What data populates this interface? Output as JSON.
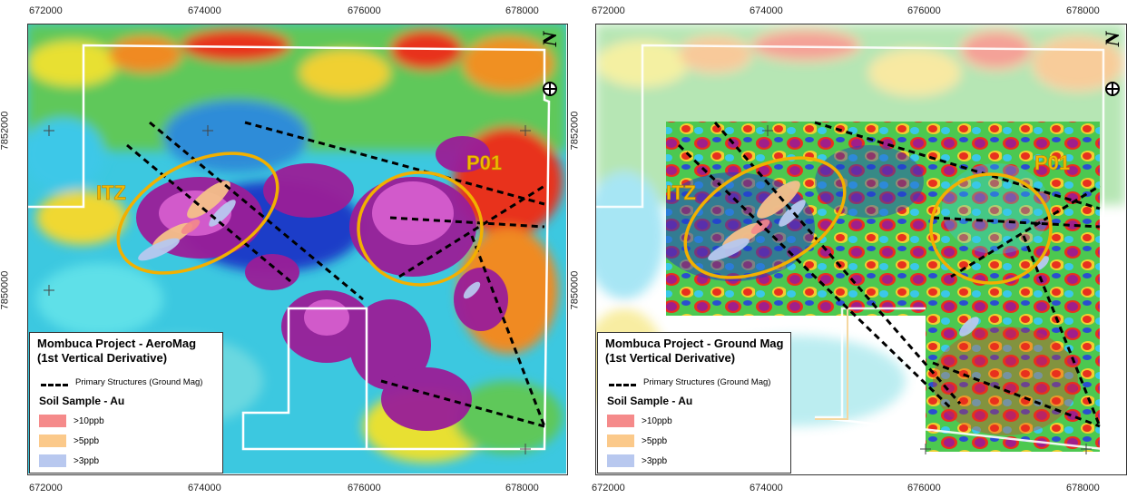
{
  "panels": [
    {
      "id": "aeromag",
      "legend_title_line1": "Mombuca Project - AeroMag",
      "legend_title_line2": " (1st Vertical Derivative)",
      "structures_label": "Primary Structures (Ground Mag)",
      "soil_title": "Soil Sample - Au",
      "classes": [
        {
          "label": ">10ppb",
          "color": "#f58a8a"
        },
        {
          "label": ">5ppb",
          "color": "#fbc98a"
        },
        {
          "label": ">3ppb",
          "color": "#b8c8ef"
        }
      ],
      "zone_labels": [
        "ITZ",
        "P01"
      ],
      "x_ticks": [
        "672000",
        "674000",
        "676000",
        "678000"
      ],
      "y_ticks": [
        "7852000",
        "7850000"
      ]
    },
    {
      "id": "groundmag",
      "legend_title_line1": "Mombuca Project - Ground Mag",
      "legend_title_line2": " (1st Vertical Derivative)",
      "structures_label": "Primary Structures (Ground Mag)",
      "soil_title": "Soil Sample - Au",
      "classes": [
        {
          "label": ">10ppb",
          "color": "#f58a8a"
        },
        {
          "label": ">5ppb",
          "color": "#fbc98a"
        },
        {
          "label": ">3ppb",
          "color": "#b8c8ef"
        }
      ],
      "zone_labels": [
        "ITZ",
        "P01"
      ],
      "x_ticks": [
        "672000",
        "674000",
        "676000",
        "678000"
      ],
      "y_ticks": [
        "7852000",
        "7850000"
      ]
    }
  ],
  "north_label": "N",
  "colors": {
    "zone_ellipse": "#f2b000",
    "project_boundary": "#ffffff",
    "structure_line": "#000000",
    "anomaly_high": "#8a1a8e",
    "anomaly_mid": "#e0203a"
  }
}
